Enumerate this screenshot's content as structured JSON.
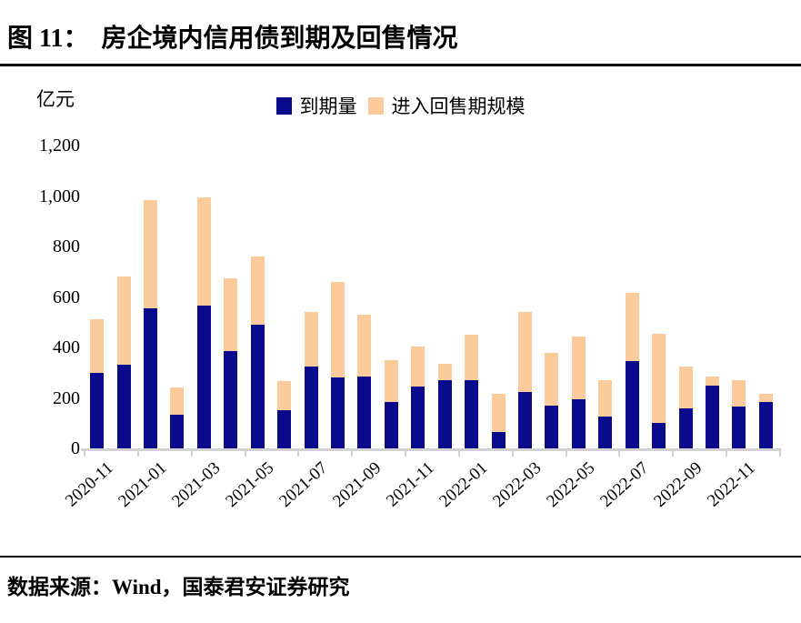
{
  "header": {
    "figure_label": "图 11：",
    "title": "房企境内信用债到期及回售情况"
  },
  "footer": {
    "source": "数据来源：Wind，国泰君安证券研究"
  },
  "chart_data": {
    "type": "bar",
    "stacked": true,
    "title": "房企境内信用债到期及回售情况",
    "xlabel": "",
    "ylabel": "亿元",
    "ylim": [
      0,
      1200
    ],
    "yticks": [
      0,
      200,
      400,
      600,
      800,
      1000,
      1200
    ],
    "ytick_labels": [
      "0",
      "200",
      "400",
      "600",
      "800",
      "1,000",
      "1,200"
    ],
    "grid": false,
    "legend_position": "top-center",
    "colors": {
      "maturity_blue": "#0a0a8c",
      "putback_orange": "#fbcb9b",
      "axis_gray": "#d2d2d2"
    },
    "categories": [
      "2020-11",
      "2020-12",
      "2021-01",
      "2021-02",
      "2021-03",
      "2021-04",
      "2021-05",
      "2021-06",
      "2021-07",
      "2021-08",
      "2021-09",
      "2021-10",
      "2021-11",
      "2021-12",
      "2022-01",
      "2022-02",
      "2022-03",
      "2022-04",
      "2022-05",
      "2022-06",
      "2022-07",
      "2022-08",
      "2022-09",
      "2022-10",
      "2022-11",
      "2022-12"
    ],
    "xtick_labels_shown": [
      "2020-11",
      "2021-01",
      "2021-03",
      "2021-05",
      "2021-07",
      "2021-09",
      "2021-11",
      "2022-01",
      "2022-03",
      "2022-05",
      "2022-07",
      "2022-09",
      "2022-11"
    ],
    "series": [
      {
        "name": "到期量",
        "color": "#0a0a8c",
        "values": [
          300,
          330,
          555,
          135,
          565,
          385,
          490,
          150,
          325,
          280,
          285,
          185,
          245,
          270,
          270,
          65,
          225,
          170,
          195,
          125,
          345,
          100,
          160,
          250,
          165,
          185
        ]
      },
      {
        "name": "进入回售期规模",
        "color": "#fbcb9b",
        "values": [
          210,
          350,
          430,
          105,
          430,
          290,
          270,
          115,
          215,
          380,
          245,
          165,
          160,
          65,
          180,
          150,
          315,
          210,
          250,
          145,
          270,
          355,
          165,
          35,
          105,
          30
        ]
      }
    ]
  }
}
